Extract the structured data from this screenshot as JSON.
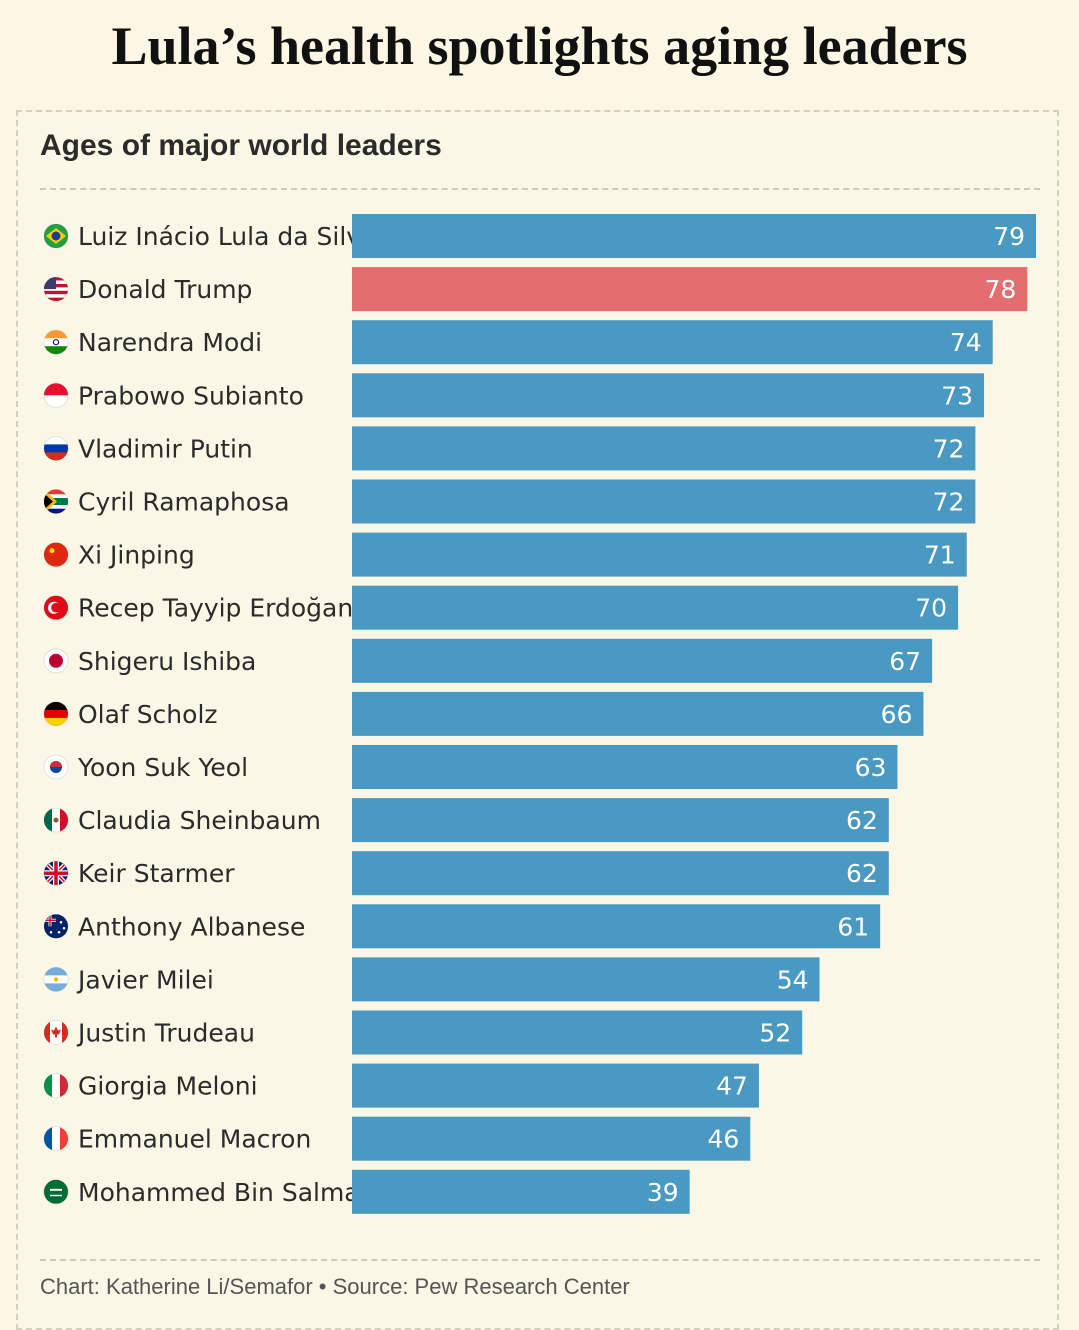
{
  "headline": "Lula’s health spotlights aging leaders",
  "chart_data": {
    "type": "bar",
    "orientation": "horizontal",
    "title": "Ages of major world leaders",
    "categories": [
      "Luiz Inácio Lula da Silva",
      "Donald Trump",
      "Narendra Modi",
      "Prabowo Subianto",
      "Vladimir Putin",
      "Cyril Ramaphosa",
      "Xi Jinping",
      "Recep Tayyip Erdoğan",
      "Shigeru Ishiba",
      "Olaf Scholz",
      "Yoon Suk Yeol",
      "Claudia Sheinbaum",
      "Keir Starmer",
      "Anthony Albanese",
      "Javier Milei",
      "Justin Trudeau",
      "Giorgia Meloni",
      "Emmanuel Macron",
      "Mohammed Bin Salman"
    ],
    "values": [
      79,
      78,
      74,
      73,
      72,
      72,
      71,
      70,
      67,
      66,
      63,
      62,
      62,
      61,
      54,
      52,
      47,
      46,
      39
    ],
    "flags": [
      "brazil-flag-icon",
      "usa-flag-icon",
      "india-flag-icon",
      "indonesia-flag-icon",
      "russia-flag-icon",
      "south-africa-flag-icon",
      "china-flag-icon",
      "turkey-flag-icon",
      "japan-flag-icon",
      "germany-flag-icon",
      "south-korea-flag-icon",
      "mexico-flag-icon",
      "uk-flag-icon",
      "australia-flag-icon",
      "argentina-flag-icon",
      "canada-flag-icon",
      "italy-flag-icon",
      "france-flag-icon",
      "saudi-arabia-flag-icon"
    ],
    "highlight": "Donald Trump",
    "colors": {
      "bar": "#4a99c3",
      "highlight": "#e46d6f",
      "value_label": "#ffffff",
      "name_label": "#2b2b2b"
    },
    "xlim": [
      0,
      79
    ],
    "gridlines": false
  },
  "source": "Chart: Katherine Li/Semafor • Source: Pew Research Center"
}
